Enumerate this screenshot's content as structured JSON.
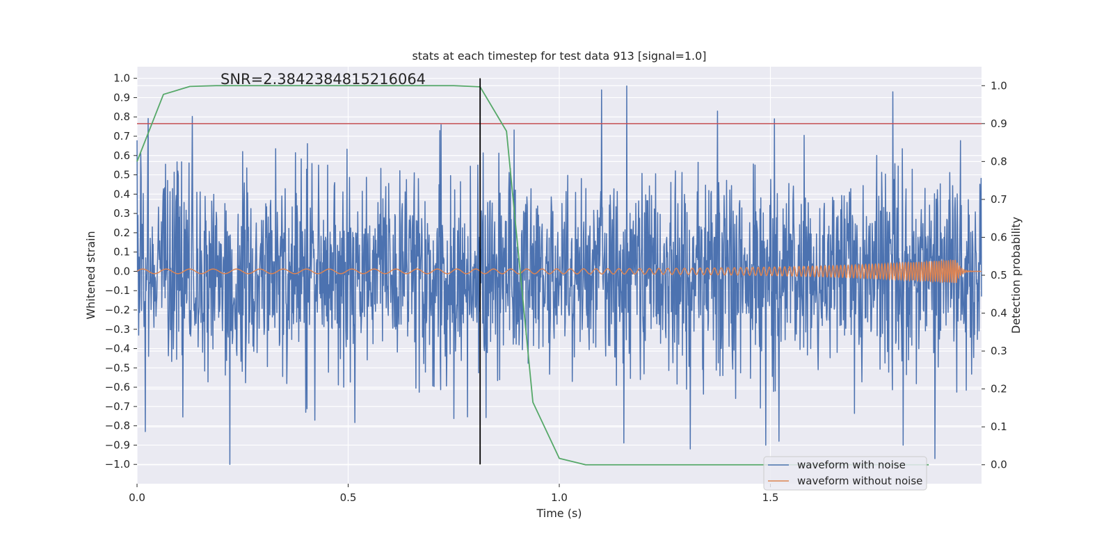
{
  "chart_data": {
    "type": "line",
    "title": "stats at each timestep for test data 913 [signal=1.0]",
    "xlabel": "Time (s)",
    "ylabel_left": "Whitened strain",
    "ylabel_right": "Detection probability",
    "annotation": "SNR=2.3842384815216064",
    "xlim": [
      0.0,
      2.0
    ],
    "ylim_left": [
      -1.1,
      1.06
    ],
    "ylim_right": [
      -0.05,
      1.05
    ],
    "x_ticks": [
      0.0,
      0.5,
      1.0,
      1.5
    ],
    "x_tick_labels": [
      "0.0",
      "0.5",
      "1.0",
      "1.5"
    ],
    "y_left_ticks": [
      1.0,
      0.9,
      0.8,
      0.7,
      0.6,
      0.5,
      0.4,
      0.3,
      0.2,
      0.1,
      0.0,
      -0.1,
      -0.2,
      -0.3,
      -0.4,
      -0.5,
      -0.6,
      -0.7,
      -0.8,
      -0.9,
      -1.0
    ],
    "y_left_tick_labels": [
      "1.0",
      "0.9",
      "0.8",
      "0.7",
      "0.6",
      "0.5",
      "0.4",
      "0.3",
      "0.2",
      "0.1",
      "0.0",
      "−0.1",
      "−0.2",
      "−0.3",
      "−0.4",
      "−0.5",
      "−0.6",
      "−0.7",
      "−0.8",
      "−0.9",
      "−1.0"
    ],
    "y_right_ticks": [
      1.0,
      0.9,
      0.8,
      0.7,
      0.6,
      0.5,
      0.4,
      0.3,
      0.2,
      0.1,
      0.0
    ],
    "y_right_tick_labels": [
      "1.0",
      "0.9",
      "0.8",
      "0.7",
      "0.6",
      "0.5",
      "0.4",
      "0.3",
      "0.2",
      "0.1",
      "0.0"
    ],
    "threshold": {
      "axis": "right",
      "value": 0.9,
      "color": "#c44e52"
    },
    "marker": {
      "x": 0.8125,
      "ymin": -1.0,
      "ymax": 1.0,
      "color": "#000000"
    },
    "series": [
      {
        "name": "waveform with noise",
        "axis": "left",
        "color": "#4c72b0",
        "style": "noise",
        "n_samples": 2048,
        "amplitude_std": 0.26,
        "notable_peaks": [
          {
            "x": 0.02,
            "y": -0.83
          },
          {
            "x": 0.22,
            "y": -1.0
          },
          {
            "x": 0.4,
            "y": -0.73
          },
          {
            "x": 0.72,
            "y": 0.76
          },
          {
            "x": 1.1,
            "y": 0.94
          },
          {
            "x": 1.16,
            "y": 0.96
          },
          {
            "x": 1.31,
            "y": -0.92
          },
          {
            "x": 1.51,
            "y": 0.79
          },
          {
            "x": 1.52,
            "y": -0.88
          },
          {
            "x": 1.79,
            "y": 0.93
          },
          {
            "x": 1.89,
            "y": -0.97
          }
        ]
      },
      {
        "name": "waveform without noise",
        "axis": "left",
        "color": "#dd8452",
        "style": "chirp",
        "start_freq_hz": 18,
        "end_freq_hz": 190,
        "start_amp": 0.012,
        "end_amp": 0.06,
        "merger_time": 1.94
      },
      {
        "name": "detection probability",
        "axis": "right",
        "color": "#55a868",
        "style": "line",
        "x": [
          0.0,
          0.0625,
          0.125,
          0.1875,
          0.25,
          0.3125,
          0.375,
          0.4375,
          0.5,
          0.5625,
          0.625,
          0.6875,
          0.75,
          0.8125,
          0.875,
          0.9375,
          1.0,
          1.0625,
          1.125,
          1.1875,
          1.25,
          1.3125,
          1.375,
          1.4375,
          1.5,
          1.5625,
          1.625,
          1.6875,
          1.75,
          1.8125,
          1.875
        ],
        "y": [
          0.8,
          0.977,
          0.998,
          1.0,
          1.0,
          1.0,
          1.0,
          1.0,
          1.0,
          1.0,
          1.0,
          1.0,
          1.0,
          0.997,
          0.88,
          0.165,
          0.017,
          0.0,
          0.0,
          0.0,
          0.0,
          0.0,
          0.0,
          0.0,
          0.0,
          0.0,
          0.0,
          0.0,
          0.0,
          0.0,
          0.0
        ]
      }
    ],
    "legend": {
      "location": "lower-right",
      "entries": [
        {
          "label": "waveform with noise",
          "color": "#4c72b0"
        },
        {
          "label": "waveform without noise",
          "color": "#dd8452"
        }
      ]
    },
    "grid": true,
    "background": "#eaeaf2"
  }
}
